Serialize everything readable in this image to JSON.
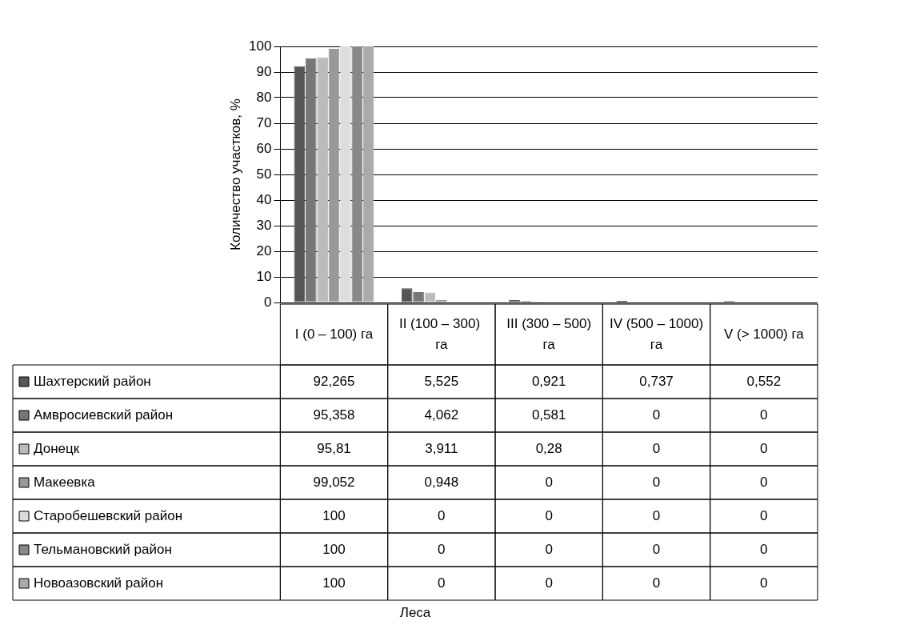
{
  "chart_data": {
    "type": "bar",
    "annotations": [
      "Леса"
    ],
    "ylabel": "Количество участков, %",
    "categories": [
      "I (0 – 100) га",
      "II (100 – 300)  га",
      "III (300 – 500) га",
      "IV (500 – 1000) га",
      "V (> 1000) га"
    ],
    "ylim": [
      0,
      100
    ],
    "yticks": [
      0,
      10,
      20,
      30,
      40,
      50,
      60,
      70,
      80,
      90,
      100
    ],
    "grid": "y",
    "legend": "bottom",
    "series": [
      {
        "name": "Шахтерский район",
        "color": "#555555",
        "values": [
          92.265,
          5.525,
          0.921,
          0.737,
          0.552
        ],
        "value_labels": [
          "92,265",
          "5,525",
          "0,921",
          "0,737",
          "0,552"
        ]
      },
      {
        "name": "Амвросиевский район",
        "color": "#777777",
        "values": [
          95.358,
          4.062,
          0.581,
          0,
          0
        ],
        "value_labels": [
          "95,358",
          "4,062",
          "0,581",
          "0",
          "0"
        ]
      },
      {
        "name": "Донецк",
        "color": "#bbbbbb",
        "values": [
          95.81,
          3.911,
          0.28,
          0,
          0
        ],
        "value_labels": [
          "95,81",
          "3,911",
          "0,28",
          "0",
          "0"
        ]
      },
      {
        "name": "Макеевка",
        "color": "#999999",
        "values": [
          99.052,
          0.948,
          0,
          0,
          0
        ],
        "value_labels": [
          "99,052",
          "0,948",
          "0",
          "0",
          "0"
        ]
      },
      {
        "name": "Старобешевский район",
        "color": "#dddddd",
        "values": [
          100,
          0,
          0,
          0,
          0
        ],
        "value_labels": [
          "100",
          "0",
          "0",
          "0",
          "0"
        ]
      },
      {
        "name": "Тельмановский район",
        "color": "#888888",
        "values": [
          100,
          0,
          0,
          0,
          0
        ],
        "value_labels": [
          "100",
          "0",
          "0",
          "0",
          "0"
        ]
      },
      {
        "name": "Новоазовский район",
        "color": "#aaaaaa",
        "values": [
          100,
          0,
          0,
          0,
          0
        ],
        "value_labels": [
          "100",
          "0",
          "0",
          "0",
          "0"
        ]
      }
    ]
  }
}
